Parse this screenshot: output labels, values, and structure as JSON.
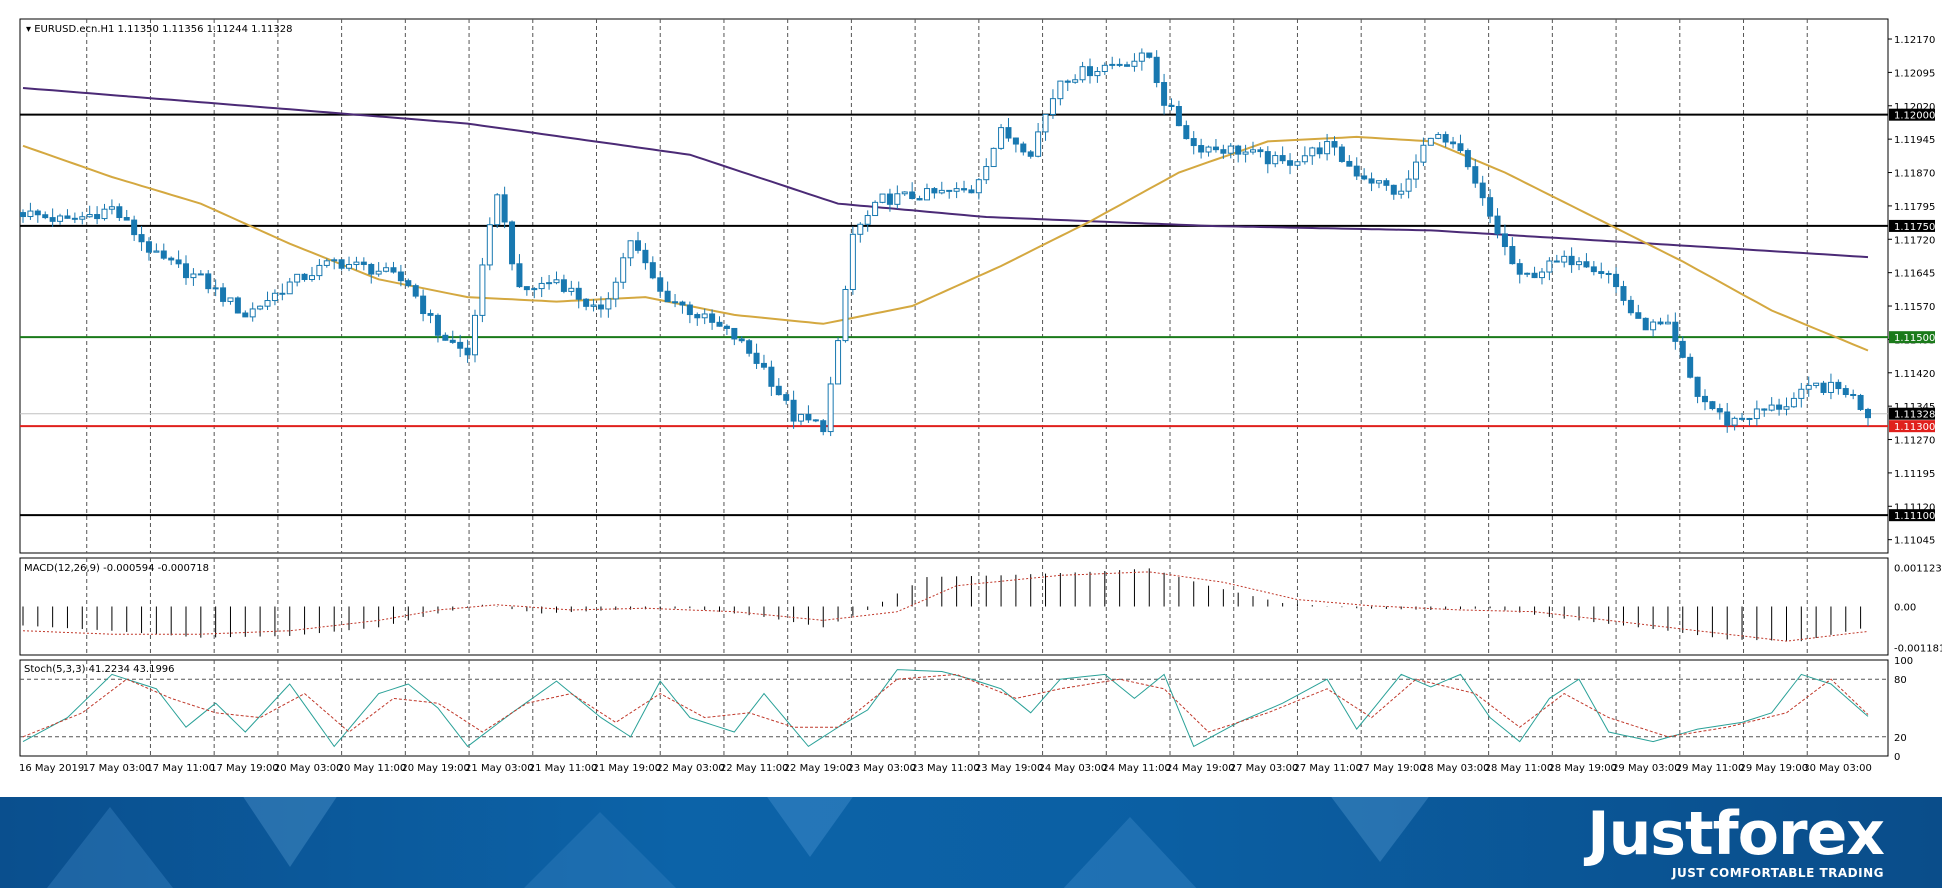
{
  "chart_data": [
    {
      "type": "candlestick",
      "title": "EURUSD.ecn.H1  1.11350 1.11356 1.11244 1.11328",
      "symbol": "EURUSD.ecn",
      "timeframe": "H1",
      "ohlc_header": {
        "open": 1.1135,
        "high": 1.11356,
        "low": 1.11244,
        "close": 1.11328
      },
      "ylim": [
        1.11015,
        1.12215
      ],
      "y_ticks": [
        "1.12170",
        "1.12095",
        "1.12020",
        "1.11945",
        "1.11870",
        "1.11795",
        "1.11720",
        "1.11645",
        "1.11570",
        "1.11495",
        "1.11420",
        "1.11345",
        "1.11270",
        "1.11195",
        "1.11120",
        "1.11045"
      ],
      "x_ticks": [
        "16 May 2019",
        "17 May 03:00",
        "17 May 11:00",
        "17 May 19:00",
        "20 May 03:00",
        "20 May 11:00",
        "20 May 19:00",
        "21 May 03:00",
        "21 May 11:00",
        "21 May 19:00",
        "22 May 03:00",
        "22 May 11:00",
        "22 May 19:00",
        "23 May 03:00",
        "23 May 11:00",
        "23 May 19:00",
        "24 May 03:00",
        "24 May 11:00",
        "24 May 19:00",
        "27 May 03:00",
        "27 May 11:00",
        "27 May 19:00",
        "28 May 03:00",
        "28 May 11:00",
        "28 May 19:00",
        "29 May 03:00",
        "29 May 11:00",
        "29 May 19:00",
        "30 May 03:00"
      ],
      "horizontal_levels": [
        {
          "value": 1.12,
          "label": "1.12000",
          "color": "#000000"
        },
        {
          "value": 1.1175,
          "label": "1.11750",
          "color": "#000000"
        },
        {
          "value": 1.115,
          "label": "1.11500",
          "color": "#1a7a1a"
        },
        {
          "value": 1.113,
          "label": "1.11300",
          "color": "#e0201c"
        },
        {
          "value": 1.111,
          "label": "1.11100",
          "color": "#000000"
        }
      ],
      "current_price": {
        "value": 1.11328,
        "label": "1.11328"
      },
      "colors": {
        "candle": "#1878b0",
        "ma_fast": "#d4a840",
        "ma_slow": "#4b2a76",
        "grid": "#555555"
      },
      "close_anchors": [
        [
          0,
          1.1178
        ],
        [
          6,
          1.1176
        ],
        [
          12,
          1.1179
        ],
        [
          18,
          1.1168
        ],
        [
          24,
          1.1163
        ],
        [
          30,
          1.1155
        ],
        [
          36,
          1.1162
        ],
        [
          42,
          1.1167
        ],
        [
          48,
          1.1165
        ],
        [
          52,
          1.1162
        ],
        [
          56,
          1.1151
        ],
        [
          60,
          1.1146
        ],
        [
          62,
          1.1165
        ],
        [
          64,
          1.1183
        ],
        [
          67,
          1.116
        ],
        [
          72,
          1.1163
        ],
        [
          78,
          1.1155
        ],
        [
          82,
          1.1172
        ],
        [
          86,
          1.116
        ],
        [
          90,
          1.1156
        ],
        [
          96,
          1.115
        ],
        [
          100,
          1.1143
        ],
        [
          104,
          1.1132
        ],
        [
          108,
          1.113
        ],
        [
          110,
          1.1148
        ],
        [
          112,
          1.1173
        ],
        [
          116,
          1.1181
        ],
        [
          122,
          1.1182
        ],
        [
          128,
          1.1183
        ],
        [
          132,
          1.1196
        ],
        [
          136,
          1.1192
        ],
        [
          140,
          1.1208
        ],
        [
          146,
          1.1211
        ],
        [
          152,
          1.1213
        ],
        [
          154,
          1.1203
        ],
        [
          158,
          1.1193
        ],
        [
          164,
          1.1192
        ],
        [
          170,
          1.1189
        ],
        [
          176,
          1.1193
        ],
        [
          180,
          1.1187
        ],
        [
          186,
          1.1182
        ],
        [
          190,
          1.1196
        ],
        [
          194,
          1.1191
        ],
        [
          198,
          1.1177
        ],
        [
          202,
          1.1163
        ],
        [
          206,
          1.1166
        ],
        [
          210,
          1.1168
        ],
        [
          214,
          1.1164
        ],
        [
          218,
          1.1153
        ],
        [
          222,
          1.1152
        ],
        [
          226,
          1.1137
        ],
        [
          230,
          1.1131
        ],
        [
          234,
          1.1133
        ],
        [
          238,
          1.1135
        ],
        [
          242,
          1.1139
        ],
        [
          246,
          1.1138
        ],
        [
          249,
          1.11328
        ]
      ],
      "ma_fast": [
        [
          0,
          1.1193
        ],
        [
          12,
          1.1186
        ],
        [
          24,
          1.118
        ],
        [
          36,
          1.1171
        ],
        [
          48,
          1.1163
        ],
        [
          60,
          1.1159
        ],
        [
          72,
          1.1158
        ],
        [
          84,
          1.1159
        ],
        [
          96,
          1.1155
        ],
        [
          108,
          1.1153
        ],
        [
          120,
          1.1157
        ],
        [
          132,
          1.1166
        ],
        [
          144,
          1.1176
        ],
        [
          156,
          1.1187
        ],
        [
          168,
          1.1194
        ],
        [
          180,
          1.1195
        ],
        [
          190,
          1.1194
        ],
        [
          200,
          1.1187
        ],
        [
          212,
          1.1177
        ],
        [
          224,
          1.1167
        ],
        [
          236,
          1.1156
        ],
        [
          249,
          1.1147
        ]
      ],
      "ma_slow": [
        [
          0,
          1.1206
        ],
        [
          30,
          1.1202
        ],
        [
          60,
          1.1198
        ],
        [
          90,
          1.1191
        ],
        [
          110,
          1.118
        ],
        [
          130,
          1.1177
        ],
        [
          160,
          1.1175
        ],
        [
          190,
          1.1174
        ],
        [
          220,
          1.1171
        ],
        [
          249,
          1.1168
        ]
      ]
    },
    {
      "type": "histogram",
      "title": "MACD(12,26,9) -0.000594 -0.000718",
      "ylim": [
        -0.0014,
        0.0014
      ],
      "y_ticks": [
        "0.001123",
        "0.00",
        "-0.001181"
      ],
      "signal_color": "#c0392b",
      "macd": [
        [
          0,
          -0.00055
        ],
        [
          12,
          -0.0007
        ],
        [
          24,
          -0.0009
        ],
        [
          36,
          -0.00085
        ],
        [
          48,
          -0.0006
        ],
        [
          56,
          -0.0002
        ],
        [
          62,
          5e-05
        ],
        [
          70,
          -0.0002
        ],
        [
          80,
          -0.0001
        ],
        [
          90,
          -5e-05
        ],
        [
          100,
          -0.0003
        ],
        [
          108,
          -0.0006
        ],
        [
          114,
          -0.0001
        ],
        [
          122,
          0.00085
        ],
        [
          132,
          0.0009
        ],
        [
          144,
          0.001
        ],
        [
          152,
          0.0011
        ],
        [
          160,
          0.0006
        ],
        [
          170,
          0.0001
        ],
        [
          180,
          -5e-05
        ],
        [
          190,
          -0.0001
        ],
        [
          198,
          -5e-05
        ],
        [
          206,
          -0.0003
        ],
        [
          214,
          -0.0005
        ],
        [
          222,
          -0.0007
        ],
        [
          230,
          -0.00095
        ],
        [
          240,
          -0.001
        ],
        [
          249,
          -0.000594
        ]
      ],
      "signal": [
        [
          0,
          -0.0007
        ],
        [
          12,
          -0.0008
        ],
        [
          24,
          -0.0008
        ],
        [
          36,
          -0.0007
        ],
        [
          48,
          -0.0004
        ],
        [
          56,
          -0.0001
        ],
        [
          64,
          5e-05
        ],
        [
          74,
          -0.0001
        ],
        [
          84,
          -5e-05
        ],
        [
          96,
          -0.00015
        ],
        [
          108,
          -0.0004
        ],
        [
          118,
          -0.00015
        ],
        [
          126,
          0.0006
        ],
        [
          140,
          0.0009
        ],
        [
          152,
          0.001
        ],
        [
          162,
          0.0007
        ],
        [
          172,
          0.0002
        ],
        [
          182,
          2e-05
        ],
        [
          194,
          -0.0001
        ],
        [
          204,
          -0.00015
        ],
        [
          214,
          -0.0004
        ],
        [
          226,
          -0.0007
        ],
        [
          238,
          -0.001
        ],
        [
          249,
          -0.000718
        ]
      ]
    },
    {
      "type": "line",
      "title": "Stoch(5,3,3) 41.2234 43.1996",
      "ylim": [
        0,
        100
      ],
      "y_ticks": [
        "100",
        "80",
        "20",
        "0"
      ],
      "levels": [
        80,
        20
      ],
      "main_color": "#2aa198",
      "signal_color": "#c0392b",
      "main": [
        [
          0,
          15
        ],
        [
          6,
          40
        ],
        [
          12,
          85
        ],
        [
          18,
          70
        ],
        [
          22,
          30
        ],
        [
          26,
          55
        ],
        [
          30,
          25
        ],
        [
          36,
          75
        ],
        [
          42,
          10
        ],
        [
          48,
          65
        ],
        [
          52,
          75
        ],
        [
          56,
          50
        ],
        [
          60,
          10
        ],
        [
          66,
          45
        ],
        [
          72,
          78
        ],
        [
          78,
          40
        ],
        [
          82,
          20
        ],
        [
          86,
          78
        ],
        [
          90,
          40
        ],
        [
          96,
          25
        ],
        [
          100,
          65
        ],
        [
          106,
          10
        ],
        [
          110,
          30
        ],
        [
          114,
          48
        ],
        [
          118,
          90
        ],
        [
          124,
          88
        ],
        [
          128,
          80
        ],
        [
          132,
          70
        ],
        [
          136,
          45
        ],
        [
          140,
          80
        ],
        [
          146,
          85
        ],
        [
          150,
          60
        ],
        [
          154,
          85
        ],
        [
          158,
          10
        ],
        [
          164,
          35
        ],
        [
          170,
          55
        ],
        [
          176,
          80
        ],
        [
          180,
          28
        ],
        [
          186,
          85
        ],
        [
          190,
          72
        ],
        [
          194,
          85
        ],
        [
          198,
          40
        ],
        [
          202,
          15
        ],
        [
          206,
          60
        ],
        [
          210,
          80
        ],
        [
          214,
          25
        ],
        [
          220,
          15
        ],
        [
          226,
          28
        ],
        [
          232,
          35
        ],
        [
          236,
          45
        ],
        [
          240,
          85
        ],
        [
          244,
          75
        ],
        [
          249,
          41.2
        ]
      ],
      "signal": [
        [
          0,
          20
        ],
        [
          8,
          45
        ],
        [
          14,
          80
        ],
        [
          20,
          60
        ],
        [
          26,
          45
        ],
        [
          32,
          40
        ],
        [
          38,
          65
        ],
        [
          44,
          25
        ],
        [
          50,
          60
        ],
        [
          56,
          55
        ],
        [
          62,
          25
        ],
        [
          68,
          55
        ],
        [
          74,
          65
        ],
        [
          80,
          35
        ],
        [
          86,
          65
        ],
        [
          92,
          40
        ],
        [
          98,
          45
        ],
        [
          104,
          30
        ],
        [
          110,
          30
        ],
        [
          118,
          80
        ],
        [
          126,
          85
        ],
        [
          134,
          60
        ],
        [
          140,
          70
        ],
        [
          148,
          80
        ],
        [
          154,
          70
        ],
        [
          160,
          25
        ],
        [
          168,
          45
        ],
        [
          176,
          70
        ],
        [
          182,
          40
        ],
        [
          188,
          80
        ],
        [
          196,
          65
        ],
        [
          202,
          30
        ],
        [
          208,
          65
        ],
        [
          214,
          40
        ],
        [
          222,
          20
        ],
        [
          230,
          30
        ],
        [
          238,
          45
        ],
        [
          244,
          80
        ],
        [
          249,
          43.2
        ]
      ]
    }
  ],
  "footer": {
    "brand": "Justforex",
    "tagline": "JUST COMFORTABLE TRADING"
  }
}
